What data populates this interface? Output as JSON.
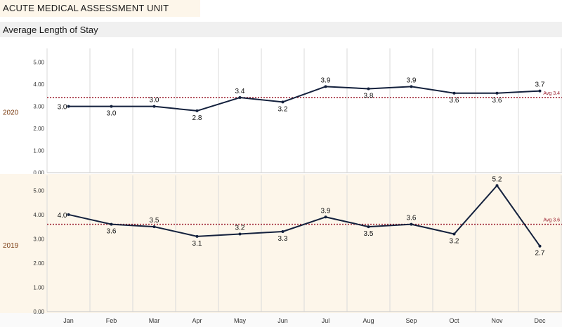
{
  "header": {
    "title": "ACUTE MEDICAL ASSESSMENT UNIT",
    "subtitle": "Average Length of Stay"
  },
  "colors": {
    "line": "#14213d",
    "avg_line": "#9b1c2c",
    "panel_2019_bg": "#fdf6ea",
    "grid": "#d9d9d9",
    "row_label": "#7a3b10"
  },
  "chart_data": {
    "type": "line",
    "categories": [
      "Jan",
      "Feb",
      "Mar",
      "Apr",
      "May",
      "Jun",
      "Jul",
      "Aug",
      "Sep",
      "Oct",
      "Nov",
      "Dec"
    ],
    "ylim": [
      0,
      5.5
    ],
    "yticks": [
      "5.00",
      "4.00",
      "3.00",
      "2.00",
      "1.00",
      "0.00"
    ],
    "grid": true,
    "series": [
      {
        "name": "2020",
        "values": [
          3.0,
          3.0,
          3.0,
          2.8,
          3.4,
          3.2,
          3.9,
          3.8,
          3.9,
          3.6,
          3.6,
          3.7
        ],
        "labels": [
          "3.0",
          "3.0",
          "3.0",
          "2.8",
          "3.4",
          "3.2",
          "3.9",
          "3.8",
          "3.9",
          "3.6",
          "3.6",
          "3.7"
        ],
        "label_pos": [
          "left",
          "below",
          "above",
          "below",
          "above",
          "below",
          "above",
          "below",
          "above",
          "below",
          "below",
          "above"
        ],
        "avg": 3.4,
        "avg_label": "Avg 3.4"
      },
      {
        "name": "2019",
        "values": [
          4.0,
          3.6,
          3.5,
          3.1,
          3.2,
          3.3,
          3.9,
          3.5,
          3.6,
          3.2,
          5.2,
          2.7
        ],
        "labels": [
          "4.0",
          "3.6",
          "3.5",
          "3.1",
          "3.2",
          "3.3",
          "3.9",
          "3.5",
          "3.6",
          "3.2",
          "5.2",
          "2.7"
        ],
        "label_pos": [
          "left",
          "below",
          "above",
          "below",
          "above",
          "below",
          "above",
          "below",
          "above",
          "below",
          "above",
          "below"
        ],
        "avg": 3.6,
        "avg_label": "Avg 3.6"
      }
    ]
  }
}
